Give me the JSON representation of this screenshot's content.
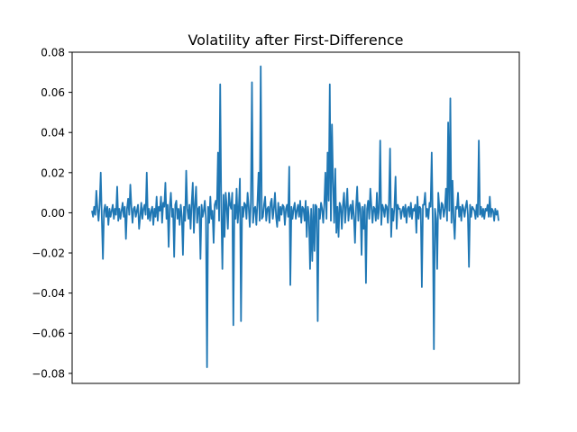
{
  "chart_data": {
    "type": "line",
    "title": "Volatility after First-Difference",
    "xlabel": "",
    "ylabel": "",
    "ylim": [
      -0.085,
      0.08
    ],
    "y_ticks": [
      "0.08",
      "0.06",
      "0.04",
      "0.02",
      "0.00",
      "−0.02",
      "−0.04",
      "−0.06",
      "−0.08"
    ],
    "y_tick_values": [
      0.08,
      0.06,
      0.04,
      0.02,
      0.0,
      -0.02,
      -0.04,
      -0.06,
      -0.08
    ],
    "x_ticks_visible": false,
    "grid": false,
    "legend": "none",
    "series": [
      {
        "color": "#1f77b4",
        "values": [
          0.001,
          -0.002,
          0.003,
          -0.001,
          0.011,
          0.002,
          -0.004,
          0.004,
          0.02,
          -0.003,
          -0.023,
          0.001,
          0.004,
          -0.002,
          0.003,
          -0.006,
          0.002,
          -0.002,
          0.001,
          0.004,
          -0.003,
          0.002,
          -0.001,
          0.013,
          -0.004,
          0.002,
          -0.003,
          0.001,
          0.005,
          -0.002,
          0.003,
          -0.013,
          0.002,
          0.007,
          -0.001,
          0.014,
          0.003,
          -0.005,
          0.002,
          0.003,
          -0.002,
          0.001,
          0.004,
          -0.008,
          -0.002,
          0.005,
          -0.003,
          0.002,
          0.004,
          -0.001,
          0.02,
          -0.003,
          0.002,
          -0.004,
          0.001,
          0.003,
          -0.006,
          0.002,
          -0.002,
          0.008,
          -0.004,
          0.003,
          0.001,
          0.008,
          -0.005,
          0.005,
          0.003,
          0.015,
          -0.003,
          0.004,
          -0.017,
          0.003,
          0.01,
          -0.002,
          0.002,
          -0.022,
          0.004,
          0.006,
          -0.003,
          0.002,
          -0.006,
          0.004,
          -0.002,
          -0.021,
          0.003,
          -0.004,
          0.021,
          0.002,
          -0.003,
          0.004,
          -0.008,
          0.005,
          0.015,
          -0.01,
          0.004,
          0.013,
          -0.005,
          0.002,
          0.003,
          -0.023,
          0.004,
          -0.002,
          0.001,
          0.006,
          -0.003,
          -0.077,
          0.003,
          -0.005,
          0.008,
          -0.003,
          0.001,
          -0.015,
          0.004,
          0.006,
          0.002,
          0.03,
          -0.004,
          0.064,
          0.002,
          -0.028,
          0.009,
          -0.012,
          0.01,
          0.003,
          -0.008,
          0.01,
          0.004,
          0.002,
          0.01,
          -0.056,
          0.004,
          -0.003,
          0.012,
          -0.005,
          0.003,
          0.017,
          -0.054,
          0.003,
          -0.002,
          0.005,
          0.004,
          -0.003,
          0.01,
          0.003,
          -0.007,
          0.005,
          0.065,
          -0.005,
          0.002,
          0.003,
          -0.006,
          0.005,
          0.02,
          -0.004,
          0.073,
          -0.003,
          -0.002,
          0.004,
          0.008,
          -0.004,
          0.002,
          0.003,
          -0.005,
          0.005,
          0.007,
          -0.003,
          0.002,
          0.01,
          -0.002,
          -0.007,
          0.005,
          -0.004,
          0.003,
          -0.001,
          0.004,
          0.003,
          -0.006,
          0.002,
          0.004,
          -0.002,
          0.023,
          -0.036,
          0.003,
          -0.003,
          0.002,
          0.005,
          -0.003,
          0.001,
          0.004,
          -0.002,
          0.006,
          -0.005,
          0.003,
          0.002,
          -0.004,
          0.006,
          -0.012,
          0.003,
          -0.002,
          -0.028,
          0.002,
          -0.024,
          0.004,
          -0.019,
          0.004,
          0.003,
          -0.054,
          0.002,
          -0.003,
          0.005,
          0.002,
          -0.005,
          0.004,
          0.02,
          -0.003,
          0.03,
          0.006,
          0.064,
          -0.004,
          0.044,
          0.015,
          -0.005,
          0.022,
          -0.01,
          0.003,
          -0.012,
          0.005,
          0.003,
          -0.008,
          0.004,
          0.01,
          -0.005,
          0.003,
          0.012,
          -0.004,
          0.002,
          0.004,
          -0.003,
          0.006,
          -0.002,
          -0.015,
          0.003,
          0.013,
          -0.004,
          0.005,
          0.002,
          -0.021,
          0.003,
          -0.008,
          0.004,
          -0.035,
          0.002,
          0.006,
          -0.003,
          0.012,
          0.003,
          -0.005,
          0.003,
          0.002,
          -0.004,
          0.01,
          -0.003,
          0.002,
          0.036,
          -0.006,
          0.004,
          0.002,
          -0.002,
          0.004,
          0.003,
          -0.005,
          0.005,
          0.032,
          -0.012,
          0.002,
          -0.004,
          0.003,
          0.018,
          -0.008,
          0.004,
          0.002,
          0.002,
          -0.003,
          0.001,
          0.003,
          -0.002,
          0.004,
          -0.005,
          0.002,
          0.003,
          -0.002,
          0.005,
          -0.003,
          0.002,
          0.001,
          0.004,
          -0.01,
          0.008,
          -0.003,
          0.003,
          0.002,
          -0.037,
          0.004,
          0.004,
          0.01,
          -0.002,
          0.002,
          -0.003,
          0.005,
          0.003,
          0.03,
          -0.006,
          -0.068,
          0.002,
          -0.003,
          -0.028,
          0.01,
          0.002,
          -0.003,
          0.005,
          0.004,
          -0.002,
          0.002,
          0.012,
          -0.004,
          0.045,
          0.001,
          0.057,
          -0.005,
          0.016,
          -0.003,
          -0.013,
          0.003,
          0.002,
          0.01,
          -0.002,
          0.003,
          -0.004,
          0.004,
          0.002,
          -0.002,
          0.003,
          0.006,
          -0.001,
          -0.027,
          0.004,
          -0.002,
          0.003,
          0.002,
          0.001,
          -0.003,
          0.004,
          -0.002,
          0.036,
          -0.001,
          0.003,
          -0.002,
          0.002,
          -0.003,
          0.002,
          0.001,
          0.004,
          -0.002,
          0.008,
          -0.002,
          0.002,
          0.001,
          -0.004,
          0.002,
          -0.001,
          0.001,
          -0.004
        ]
      }
    ]
  }
}
